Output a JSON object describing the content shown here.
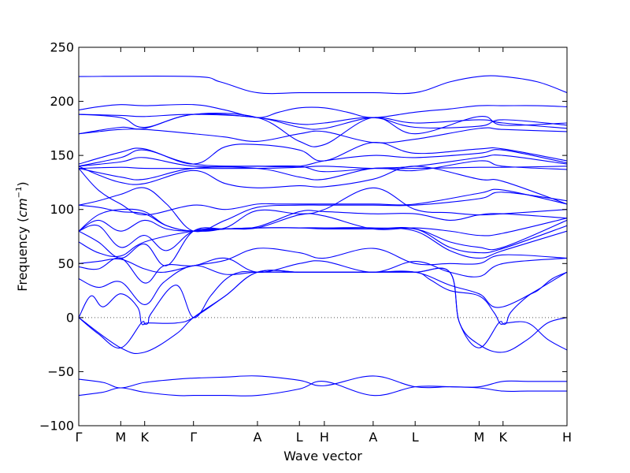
{
  "chart_data": {
    "type": "line",
    "xlabel": "Wave vector",
    "ylabel_prefix": "Frequency (",
    "ylabel_unit_base": "cm",
    "ylabel_unit_exp": "−1",
    "ylabel_suffix": ")",
    "ylim": [
      -100,
      250
    ],
    "xlim": [
      0,
      1
    ],
    "yticks": [
      -100,
      -50,
      0,
      50,
      100,
      150,
      200,
      250
    ],
    "zero_line": true,
    "grid": false,
    "colors": {
      "bands": "#0000ff",
      "axes": "#000000",
      "zero_line": "#555555"
    },
    "kpoints": [
      {
        "label": "Γ",
        "x": 0.0
      },
      {
        "label": "M",
        "x": 0.086
      },
      {
        "label": "K",
        "x": 0.135
      },
      {
        "label": "Γ",
        "x": 0.235
      },
      {
        "label": "A",
        "x": 0.366
      },
      {
        "label": "L",
        "x": 0.452
      },
      {
        "label": "H",
        "x": 0.503
      },
      {
        "label": "A",
        "x": 0.603
      },
      {
        "label": "L",
        "x": 0.689
      },
      {
        "label": "M",
        "x": 0.82
      },
      {
        "label": "K",
        "x": 0.869
      },
      {
        "label": "H",
        "x": 1.0
      }
    ],
    "bands": [
      {
        "x": [
          0,
          0.235,
          0.29,
          0.366,
          0.452,
          0.503,
          0.603,
          0.689,
          0.76,
          0.82,
          0.869,
          0.94,
          1.0
        ],
        "y": [
          223,
          223,
          218,
          208,
          208,
          208,
          208,
          208,
          218,
          223,
          223,
          218,
          208
        ]
      },
      {
        "x": [
          0,
          0.04,
          0.086,
          0.135,
          0.235,
          0.3,
          0.366,
          0.41,
          0.452,
          0.503,
          0.55,
          0.603,
          0.689,
          0.76,
          0.82,
          0.869,
          0.94,
          1.0
        ],
        "y": [
          192,
          195,
          197,
          196,
          197,
          192,
          185,
          190,
          194,
          194,
          190,
          185,
          190,
          193,
          196,
          196,
          196,
          195
        ]
      },
      {
        "x": [
          0,
          0.086,
          0.135,
          0.235,
          0.366,
          0.452,
          0.503,
          0.603,
          0.689,
          0.82,
          0.869,
          1.0
        ],
        "y": [
          188,
          187,
          186,
          188,
          185,
          176,
          175,
          185,
          180,
          183,
          180,
          175
        ]
      },
      {
        "x": [
          0,
          0.086,
          0.135,
          0.235,
          0.366,
          0.452,
          0.503,
          0.603,
          0.689,
          0.82,
          0.869,
          1.0
        ],
        "y": [
          188,
          185,
          176,
          188,
          185,
          179,
          180,
          185,
          176,
          177,
          183,
          178
        ]
      },
      {
        "x": [
          0,
          0.086,
          0.135,
          0.235,
          0.366,
          0.452,
          0.503,
          0.603,
          0.689,
          0.82,
          0.869,
          1.0
        ],
        "y": [
          170,
          176,
          175,
          188,
          185,
          163,
          160,
          185,
          170,
          186,
          178,
          180
        ]
      },
      {
        "x": [
          0,
          0.04,
          0.086,
          0.135,
          0.235,
          0.3,
          0.366,
          0.452,
          0.503,
          0.603,
          0.689,
          0.82,
          0.869,
          1.0
        ],
        "y": [
          170,
          172,
          174,
          174,
          170,
          167,
          163,
          170,
          172,
          162,
          165,
          175,
          174,
          172
        ]
      },
      {
        "x": [
          0,
          0.086,
          0.135,
          0.235,
          0.3,
          0.366,
          0.452,
          0.503,
          0.603,
          0.689,
          0.82,
          0.869,
          1.0
        ],
        "y": [
          142,
          153,
          156,
          142,
          158,
          160,
          155,
          145,
          162,
          152,
          156,
          156,
          145
        ]
      },
      {
        "x": [
          0,
          0.086,
          0.135,
          0.235,
          0.366,
          0.452,
          0.503,
          0.603,
          0.689,
          0.82,
          0.869,
          1.0
        ],
        "y": [
          140,
          148,
          155,
          142,
          140,
          140,
          145,
          150,
          148,
          152,
          155,
          143
        ]
      },
      {
        "x": [
          0,
          0.086,
          0.135,
          0.235,
          0.366,
          0.452,
          0.503,
          0.603,
          0.689,
          0.82,
          0.869,
          1.0
        ],
        "y": [
          140,
          144,
          148,
          140,
          140,
          140,
          135,
          138,
          140,
          148,
          150,
          142
        ]
      },
      {
        "x": [
          0,
          0.086,
          0.135,
          0.235,
          0.366,
          0.452,
          0.503,
          0.603,
          0.689,
          0.82,
          0.869,
          1.0
        ],
        "y": [
          138,
          139,
          138,
          138,
          138,
          139,
          140,
          138,
          138,
          139,
          139,
          140
        ]
      },
      {
        "x": [
          0,
          0.086,
          0.135,
          0.235,
          0.366,
          0.452,
          0.503,
          0.603,
          0.689,
          0.82,
          0.869,
          1.0
        ],
        "y": [
          138,
          130,
          128,
          138,
          138,
          130,
          128,
          138,
          136,
          145,
          140,
          137
        ]
      },
      {
        "x": [
          0,
          0.04,
          0.086,
          0.135,
          0.235,
          0.3,
          0.366,
          0.452,
          0.503,
          0.603,
          0.689,
          0.82,
          0.869,
          1.0
        ],
        "y": [
          140,
          132,
          125,
          124,
          136,
          124,
          120,
          122,
          121,
          128,
          140,
          128,
          126,
          105
        ]
      },
      {
        "x": [
          0,
          0.04,
          0.086,
          0.135,
          0.235,
          0.3,
          0.366,
          0.41,
          0.452,
          0.503,
          0.603,
          0.689,
          0.82,
          0.869,
          1.0
        ],
        "y": [
          138,
          118,
          105,
          95,
          104,
          100,
          105,
          105,
          105,
          105,
          105,
          105,
          115,
          118,
          105
        ]
      },
      {
        "x": [
          0,
          0.04,
          0.086,
          0.135,
          0.18,
          0.235,
          0.3,
          0.366,
          0.452,
          0.503,
          0.603,
          0.689,
          0.82,
          0.869,
          1.0
        ],
        "y": [
          104,
          108,
          114,
          120,
          105,
          80,
          90,
          102,
          104,
          104,
          104,
          104,
          110,
          116,
          108
        ]
      },
      {
        "x": [
          0,
          0.04,
          0.086,
          0.135,
          0.18,
          0.235,
          0.3,
          0.366,
          0.452,
          0.503,
          0.603,
          0.689,
          0.76,
          0.82,
          0.869,
          1.0
        ],
        "y": [
          104,
          102,
          98,
          96,
          85,
          80,
          83,
          99,
          96,
          100,
          120,
          100,
          97,
          95,
          96,
          100
        ]
      },
      {
        "x": [
          0,
          0.04,
          0.086,
          0.135,
          0.18,
          0.235,
          0.3,
          0.366,
          0.452,
          0.503,
          0.603,
          0.689,
          0.76,
          0.82,
          0.869,
          1.0
        ],
        "y": [
          80,
          95,
          100,
          98,
          85,
          80,
          82,
          84,
          98,
          98,
          96,
          96,
          90,
          95,
          96,
          92
        ]
      },
      {
        "x": [
          0,
          0.04,
          0.086,
          0.135,
          0.18,
          0.235,
          0.3,
          0.366,
          0.452,
          0.503,
          0.603,
          0.689,
          0.76,
          0.82,
          0.869,
          1.0
        ],
        "y": [
          80,
          90,
          80,
          90,
          82,
          80,
          82,
          83,
          95,
          94,
          82,
          83,
          80,
          76,
          78,
          92
        ]
      },
      {
        "x": [
          0,
          0.04,
          0.086,
          0.135,
          0.18,
          0.235,
          0.3,
          0.366,
          0.452,
          0.503,
          0.603,
          0.689,
          0.76,
          0.82,
          0.869,
          1.0
        ],
        "y": [
          80,
          85,
          65,
          76,
          62,
          80,
          82,
          83,
          83,
          83,
          82,
          82,
          70,
          65,
          65,
          90
        ]
      },
      {
        "x": [
          0,
          0.04,
          0.086,
          0.135,
          0.18,
          0.235,
          0.3,
          0.366,
          0.452,
          0.503,
          0.603,
          0.689,
          0.76,
          0.82,
          0.869,
          1.0
        ],
        "y": [
          80,
          70,
          55,
          68,
          48,
          80,
          82,
          83,
          83,
          82,
          82,
          82,
          65,
          60,
          64,
          85
        ]
      },
      {
        "x": [
          0,
          0.04,
          0.086,
          0.135,
          0.235,
          0.3,
          0.366,
          0.452,
          0.503,
          0.603,
          0.689,
          0.76,
          0.82,
          0.869,
          1.0
        ],
        "y": [
          70,
          60,
          57,
          70,
          80,
          82,
          83,
          83,
          83,
          83,
          80,
          62,
          55,
          62,
          80
        ]
      },
      {
        "x": [
          0,
          0.04,
          0.086,
          0.135,
          0.175,
          0.235,
          0.3,
          0.366,
          0.452,
          0.503,
          0.603,
          0.689,
          0.76,
          0.82,
          0.869,
          1.0
        ],
        "y": [
          50,
          52,
          54,
          45,
          42,
          48,
          53,
          64,
          60,
          55,
          64,
          50,
          50,
          50,
          58,
          55
        ]
      },
      {
        "x": [
          0,
          0.04,
          0.086,
          0.135,
          0.175,
          0.235,
          0.3,
          0.366,
          0.452,
          0.503,
          0.603,
          0.689,
          0.76,
          0.82,
          0.869,
          1.0
        ],
        "y": [
          47,
          45,
          55,
          32,
          48,
          48,
          55,
          42,
          50,
          52,
          42,
          52,
          42,
          38,
          50,
          55
        ]
      },
      {
        "x": [
          0,
          0.04,
          0.086,
          0.135,
          0.175,
          0.235,
          0.3,
          0.366,
          0.452,
          0.503,
          0.603,
          0.689,
          0.76,
          0.82,
          0.869,
          1.0
        ],
        "y": [
          36,
          28,
          33,
          12,
          33,
          48,
          40,
          42,
          42,
          42,
          42,
          42,
          30,
          22,
          10,
          42
        ]
      },
      {
        "x": [
          0,
          0.025,
          0.05,
          0.086,
          0.12,
          0.128,
          0.135,
          0.142,
          0.15,
          0.2,
          0.235,
          0.27,
          0.3,
          0.33,
          0.366,
          0.452,
          0.503,
          0.603,
          0.689,
          0.72,
          0.76,
          0.82,
          0.85,
          0.862,
          0.869,
          0.876,
          0.885,
          0.92,
          0.94,
          0.97,
          1.0
        ],
        "y": [
          0,
          20,
          10,
          22,
          10,
          -5,
          -6,
          -5,
          5,
          30,
          0,
          20,
          35,
          42,
          42,
          42,
          42,
          42,
          42,
          35,
          25,
          20,
          5,
          -5,
          -6,
          -5,
          5,
          20,
          25,
          36,
          42
        ]
      },
      {
        "x": [
          0,
          0.04,
          0.086,
          0.128,
          0.135,
          0.142,
          0.2,
          0.235,
          0.3,
          0.366,
          0.452,
          0.503,
          0.603,
          0.689,
          0.76,
          0.78,
          0.82,
          0.86,
          0.869,
          0.876,
          0.92,
          0.96,
          1.0
        ],
        "y": [
          0,
          -15,
          -28,
          -5,
          -6,
          -5,
          -5,
          0,
          20,
          42,
          42,
          42,
          42,
          42,
          42,
          -5,
          -28,
          -5,
          -6,
          -5,
          -5,
          -20,
          -30
        ]
      },
      {
        "x": [
          0,
          0.086,
          0.135,
          0.2,
          0.235,
          0.3,
          0.366,
          0.452,
          0.503,
          0.603,
          0.689,
          0.76,
          0.78,
          0.82,
          0.869,
          0.92,
          0.96,
          1.0
        ],
        "y": [
          0,
          -28,
          -32,
          -15,
          0,
          20,
          42,
          42,
          42,
          42,
          42,
          42,
          -5,
          -25,
          -32,
          -20,
          -5,
          0
        ]
      },
      {
        "x": [
          0,
          0.05,
          0.086,
          0.135,
          0.2,
          0.235,
          0.3,
          0.366,
          0.452,
          0.503,
          0.603,
          0.689,
          0.76,
          0.82,
          0.869,
          0.92,
          1.0
        ],
        "y": [
          -57,
          -60,
          -65,
          -60,
          -57,
          -56,
          -55,
          -54,
          -58,
          -63,
          -54,
          -64,
          -64,
          -64,
          -59,
          -59,
          -59
        ]
      },
      {
        "x": [
          0,
          0.05,
          0.086,
          0.135,
          0.2,
          0.235,
          0.3,
          0.366,
          0.452,
          0.503,
          0.603,
          0.689,
          0.76,
          0.82,
          0.869,
          0.92,
          1.0
        ],
        "y": [
          -72,
          -69,
          -65,
          -69,
          -72,
          -72,
          -72,
          -72,
          -66,
          -59,
          -72,
          -64,
          -64,
          -65,
          -68,
          -68,
          -68
        ]
      }
    ]
  }
}
